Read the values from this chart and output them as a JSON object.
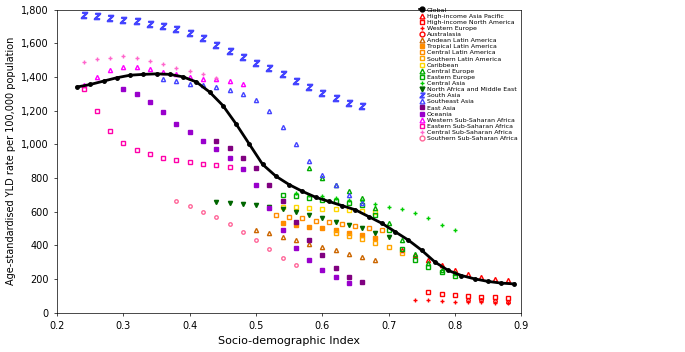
{
  "xlabel": "Socio-demographic Index",
  "ylabel": "Age-standardised YLD rate per 100,000 population",
  "xlim": [
    0.2,
    0.9
  ],
  "ylim": [
    0,
    1800
  ],
  "yticks": [
    0,
    200,
    400,
    600,
    800,
    1000,
    1200,
    1400,
    1600,
    1800
  ],
  "xticks": [
    0.2,
    0.3,
    0.4,
    0.5,
    0.6,
    0.7,
    0.8,
    0.9
  ],
  "regions": [
    {
      "name": "Global",
      "color": "#000000",
      "marker": "o",
      "markersize": 2.5,
      "linestyle": "-",
      "linewidth": 2.0,
      "fillstyle": "full",
      "x": [
        0.23,
        0.25,
        0.27,
        0.29,
        0.31,
        0.33,
        0.35,
        0.37,
        0.39,
        0.41,
        0.43,
        0.45,
        0.47,
        0.49,
        0.51,
        0.53,
        0.55,
        0.57,
        0.59,
        0.61,
        0.63,
        0.65,
        0.67,
        0.69,
        0.71,
        0.73,
        0.75,
        0.77,
        0.79,
        0.81,
        0.83,
        0.85,
        0.87,
        0.89
      ],
      "y": [
        1340,
        1355,
        1375,
        1395,
        1410,
        1415,
        1418,
        1415,
        1400,
        1370,
        1310,
        1230,
        1120,
        1000,
        880,
        810,
        760,
        720,
        685,
        660,
        635,
        610,
        570,
        530,
        480,
        430,
        370,
        300,
        250,
        220,
        200,
        185,
        175,
        170
      ]
    },
    {
      "name": "High-income Asia Pacific",
      "color": "#FF0000",
      "marker": "^",
      "markersize": 3,
      "linestyle": "none",
      "linewidth": 0,
      "fillstyle": "none",
      "x": [
        0.72,
        0.74,
        0.76,
        0.78,
        0.8,
        0.82,
        0.84,
        0.86,
        0.88
      ],
      "y": [
        370,
        340,
        310,
        280,
        255,
        230,
        210,
        200,
        195
      ]
    },
    {
      "name": "High-income North America",
      "color": "#FF0000",
      "marker": "s",
      "markersize": 2.5,
      "linestyle": "none",
      "linewidth": 0,
      "fillstyle": "none",
      "x": [
        0.76,
        0.78,
        0.8,
        0.82,
        0.84,
        0.86,
        0.88
      ],
      "y": [
        120,
        110,
        105,
        100,
        95,
        90,
        85
      ]
    },
    {
      "name": "Western Europe",
      "color": "#FF0000",
      "marker": "+",
      "markersize": 3.5,
      "linestyle": "none",
      "linewidth": 0,
      "fillstyle": "full",
      "x": [
        0.74,
        0.76,
        0.78,
        0.8,
        0.82,
        0.84,
        0.86,
        0.88
      ],
      "y": [
        75,
        72,
        68,
        65,
        62,
        60,
        57,
        55
      ]
    },
    {
      "name": "Australasia",
      "color": "#FF0000",
      "marker": "o",
      "markersize": 2.5,
      "linestyle": "none",
      "linewidth": 0,
      "fillstyle": "none",
      "x": [
        0.82,
        0.84,
        0.86,
        0.88
      ],
      "y": [
        75,
        72,
        68,
        65
      ]
    },
    {
      "name": "Andean Latin America",
      "color": "#CC6600",
      "marker": "^",
      "markersize": 3,
      "linestyle": "none",
      "linewidth": 0,
      "fillstyle": "none",
      "x": [
        0.5,
        0.52,
        0.54,
        0.56,
        0.58,
        0.6,
        0.62,
        0.64,
        0.66,
        0.68
      ],
      "y": [
        490,
        470,
        450,
        430,
        410,
        390,
        370,
        350,
        330,
        310
      ]
    },
    {
      "name": "Tropical Latin America",
      "color": "#FF8C00",
      "marker": "s",
      "markersize": 2.5,
      "linestyle": "none",
      "linewidth": 0,
      "fillstyle": "full",
      "x": [
        0.54,
        0.56,
        0.58,
        0.6,
        0.62,
        0.64,
        0.66,
        0.68
      ],
      "y": [
        530,
        520,
        510,
        500,
        490,
        475,
        460,
        445
      ]
    },
    {
      "name": "Central Latin America",
      "color": "#FF8C00",
      "marker": "s",
      "markersize": 2.5,
      "linestyle": "none",
      "linewidth": 0,
      "fillstyle": "none",
      "x": [
        0.53,
        0.55,
        0.57,
        0.59,
        0.61,
        0.63,
        0.65,
        0.67,
        0.69
      ],
      "y": [
        580,
        570,
        560,
        545,
        535,
        525,
        515,
        505,
        490
      ]
    },
    {
      "name": "Southern Latin America",
      "color": "#FFA500",
      "marker": "s",
      "markersize": 2.5,
      "linestyle": "none",
      "linewidth": 0,
      "fillstyle": "none",
      "x": [
        0.62,
        0.64,
        0.66,
        0.68,
        0.7,
        0.72
      ],
      "y": [
        470,
        455,
        435,
        415,
        390,
        355
      ]
    },
    {
      "name": "Caribbean",
      "color": "#FFD700",
      "marker": "s",
      "markersize": 2.5,
      "linestyle": "none",
      "linewidth": 0,
      "fillstyle": "none",
      "x": [
        0.54,
        0.56,
        0.58,
        0.6,
        0.62,
        0.64,
        0.66,
        0.68
      ],
      "y": [
        630,
        625,
        622,
        618,
        614,
        610,
        605,
        600
      ]
    },
    {
      "name": "Central Europe",
      "color": "#00AA00",
      "marker": "^",
      "markersize": 3,
      "linestyle": "none",
      "linewidth": 0,
      "fillstyle": "none",
      "x": [
        0.58,
        0.6,
        0.62,
        0.64,
        0.66,
        0.68,
        0.7,
        0.72,
        0.74,
        0.76,
        0.78,
        0.8
      ],
      "y": [
        860,
        800,
        760,
        720,
        680,
        620,
        530,
        430,
        350,
        295,
        255,
        235
      ]
    },
    {
      "name": "Eastern Europe",
      "color": "#00AA00",
      "marker": "s",
      "markersize": 2.5,
      "linestyle": "none",
      "linewidth": 0,
      "fillstyle": "none",
      "x": [
        0.54,
        0.56,
        0.58,
        0.6,
        0.62,
        0.64,
        0.66,
        0.68,
        0.7,
        0.72,
        0.74,
        0.76,
        0.78,
        0.8
      ],
      "y": [
        700,
        690,
        680,
        670,
        660,
        650,
        640,
        580,
        490,
        380,
        310,
        268,
        238,
        215
      ]
    },
    {
      "name": "Central Asia",
      "color": "#00CC00",
      "marker": "+",
      "markersize": 3.5,
      "linestyle": "none",
      "linewidth": 0,
      "fillstyle": "full",
      "x": [
        0.56,
        0.58,
        0.6,
        0.62,
        0.64,
        0.66,
        0.68,
        0.7,
        0.72,
        0.74,
        0.76,
        0.78,
        0.8
      ],
      "y": [
        710,
        700,
        690,
        680,
        670,
        660,
        645,
        630,
        615,
        590,
        560,
        520,
        490
      ]
    },
    {
      "name": "North Africa and Middle East",
      "color": "#006600",
      "marker": "v",
      "markersize": 3,
      "linestyle": "none",
      "linewidth": 0,
      "fillstyle": "full",
      "x": [
        0.44,
        0.46,
        0.48,
        0.5,
        0.52,
        0.54,
        0.56,
        0.58,
        0.6,
        0.62,
        0.64,
        0.66,
        0.68,
        0.7
      ],
      "y": [
        655,
        650,
        645,
        640,
        630,
        615,
        600,
        580,
        560,
        540,
        520,
        500,
        475,
        450
      ]
    },
    {
      "name": "South Asia",
      "color": "#4444FF",
      "marker": "z",
      "markersize": 4.5,
      "linestyle": "none",
      "linewidth": 0,
      "fillstyle": "full",
      "x": [
        0.24,
        0.26,
        0.28,
        0.3,
        0.32,
        0.34,
        0.36,
        0.38,
        0.4,
        0.42,
        0.44,
        0.46,
        0.48,
        0.5,
        0.52,
        0.54,
        0.56,
        0.58,
        0.6,
        0.62,
        0.64,
        0.66
      ],
      "y": [
        1770,
        1760,
        1750,
        1740,
        1730,
        1715,
        1700,
        1685,
        1660,
        1630,
        1590,
        1555,
        1520,
        1485,
        1450,
        1415,
        1375,
        1340,
        1305,
        1275,
        1245,
        1225
      ]
    },
    {
      "name": "Southeast Asia",
      "color": "#4444FF",
      "marker": "^",
      "markersize": 3,
      "linestyle": "none",
      "linewidth": 0,
      "fillstyle": "none",
      "x": [
        0.36,
        0.38,
        0.4,
        0.42,
        0.44,
        0.46,
        0.48,
        0.5,
        0.52,
        0.54,
        0.56,
        0.58,
        0.6,
        0.62,
        0.64,
        0.66
      ],
      "y": [
        1390,
        1375,
        1360,
        1350,
        1340,
        1325,
        1300,
        1260,
        1195,
        1100,
        1000,
        900,
        820,
        760,
        700,
        650
      ]
    },
    {
      "name": "East Asia",
      "color": "#800080",
      "marker": "s",
      "markersize": 2.5,
      "linestyle": "none",
      "linewidth": 0,
      "fillstyle": "full",
      "x": [
        0.44,
        0.46,
        0.48,
        0.5,
        0.52,
        0.54,
        0.56,
        0.58,
        0.6,
        0.62,
        0.64,
        0.66
      ],
      "y": [
        1020,
        980,
        920,
        860,
        760,
        660,
        540,
        430,
        340,
        265,
        210,
        180
      ]
    },
    {
      "name": "Oceania",
      "color": "#9900CC",
      "marker": "s",
      "markersize": 2.5,
      "linestyle": "none",
      "linewidth": 0,
      "fillstyle": "full",
      "x": [
        0.3,
        0.32,
        0.34,
        0.36,
        0.38,
        0.4,
        0.42,
        0.44,
        0.46,
        0.48,
        0.5,
        0.52,
        0.54,
        0.56,
        0.58,
        0.6,
        0.62,
        0.64
      ],
      "y": [
        1330,
        1300,
        1250,
        1190,
        1120,
        1070,
        1020,
        970,
        920,
        855,
        760,
        620,
        490,
        385,
        310,
        255,
        210,
        175
      ]
    },
    {
      "name": "Western Sub-Saharan Africa",
      "color": "#FF00FF",
      "marker": "^",
      "markersize": 3,
      "linestyle": "none",
      "linewidth": 0,
      "fillstyle": "none",
      "x": [
        0.24,
        0.26,
        0.28,
        0.3,
        0.32,
        0.34,
        0.36,
        0.38,
        0.4,
        0.42,
        0.44,
        0.46,
        0.48
      ],
      "y": [
        1350,
        1400,
        1440,
        1460,
        1460,
        1445,
        1430,
        1415,
        1400,
        1390,
        1385,
        1375,
        1355
      ]
    },
    {
      "name": "Eastern Sub-Saharan Africa",
      "color": "#FF00AA",
      "marker": "s",
      "markersize": 2.5,
      "linestyle": "none",
      "linewidth": 0,
      "fillstyle": "none",
      "x": [
        0.24,
        0.26,
        0.28,
        0.3,
        0.32,
        0.34,
        0.36,
        0.38,
        0.4,
        0.42,
        0.44,
        0.46
      ],
      "y": [
        1330,
        1200,
        1080,
        1010,
        965,
        940,
        920,
        905,
        895,
        885,
        875,
        865
      ]
    },
    {
      "name": "Central Sub-Saharan Africa",
      "color": "#FF66CC",
      "marker": "+",
      "markersize": 3.5,
      "linestyle": "none",
      "linewidth": 0,
      "fillstyle": "full",
      "x": [
        0.24,
        0.26,
        0.28,
        0.3,
        0.32,
        0.34,
        0.36,
        0.38,
        0.4,
        0.42,
        0.44
      ],
      "y": [
        1490,
        1505,
        1515,
        1525,
        1510,
        1495,
        1475,
        1455,
        1435,
        1415,
        1395
      ]
    },
    {
      "name": "Southern Sub-Saharan Africa",
      "color": "#FF6699",
      "marker": "o",
      "markersize": 2.5,
      "linestyle": "none",
      "linewidth": 0,
      "fillstyle": "none",
      "x": [
        0.38,
        0.4,
        0.42,
        0.44,
        0.46,
        0.48,
        0.5,
        0.52,
        0.54,
        0.56
      ],
      "y": [
        665,
        635,
        600,
        565,
        525,
        480,
        430,
        380,
        325,
        285
      ]
    }
  ],
  "legend": [
    {
      "name": "Global",
      "color": "#000000",
      "marker": "o",
      "fillstyle": "full",
      "ls": "-"
    },
    {
      "name": "High-income Asia Pacific",
      "color": "#FF0000",
      "marker": "^",
      "fillstyle": "none",
      "ls": "none"
    },
    {
      "name": "High-income North America",
      "color": "#FF0000",
      "marker": "s",
      "fillstyle": "none",
      "ls": "none"
    },
    {
      "name": "Western Europe",
      "color": "#FF0000",
      "marker": "+",
      "fillstyle": "full",
      "ls": "none"
    },
    {
      "name": "Australasia",
      "color": "#FF0000",
      "marker": "o",
      "fillstyle": "none",
      "ls": "none"
    },
    {
      "name": "Andean Latin America",
      "color": "#CC6600",
      "marker": "^",
      "fillstyle": "none",
      "ls": "none"
    },
    {
      "name": "Tropical Latin America",
      "color": "#FF8C00",
      "marker": "s",
      "fillstyle": "full",
      "ls": "none"
    },
    {
      "name": "Central Latin America",
      "color": "#FF8C00",
      "marker": "s",
      "fillstyle": "none",
      "ls": "none"
    },
    {
      "name": "Southern Latin America",
      "color": "#FFA500",
      "marker": "s",
      "fillstyle": "none",
      "ls": "none"
    },
    {
      "name": "Caribbean",
      "color": "#FFD700",
      "marker": "s",
      "fillstyle": "none",
      "ls": "none"
    },
    {
      "name": "Central Europe",
      "color": "#00AA00",
      "marker": "^",
      "fillstyle": "none",
      "ls": "none"
    },
    {
      "name": "Eastern Europe",
      "color": "#00AA00",
      "marker": "s",
      "fillstyle": "none",
      "ls": "none"
    },
    {
      "name": "Central Asia",
      "color": "#00CC00",
      "marker": "+",
      "fillstyle": "full",
      "ls": "none"
    },
    {
      "name": "North Africa and Middle East",
      "color": "#006600",
      "marker": "v",
      "fillstyle": "full",
      "ls": "none"
    },
    {
      "name": "South Asia",
      "color": "#4444FF",
      "marker": "z",
      "fillstyle": "full",
      "ls": "none"
    },
    {
      "name": "Southeast Asia",
      "color": "#4444FF",
      "marker": "^",
      "fillstyle": "none",
      "ls": "none"
    },
    {
      "name": "East Asia",
      "color": "#800080",
      "marker": "s",
      "fillstyle": "full",
      "ls": "none"
    },
    {
      "name": "Oceania",
      "color": "#9900CC",
      "marker": "s",
      "fillstyle": "full",
      "ls": "none"
    },
    {
      "name": "Western Sub-Saharan Africa",
      "color": "#FF00FF",
      "marker": "^",
      "fillstyle": "none",
      "ls": "none"
    },
    {
      "name": "Eastern Sub-Saharan Africa",
      "color": "#FF00AA",
      "marker": "s",
      "fillstyle": "none",
      "ls": "none"
    },
    {
      "name": "Central Sub-Saharan Africa",
      "color": "#FF66CC",
      "marker": "+",
      "fillstyle": "full",
      "ls": "none"
    },
    {
      "name": "Southern Sub-Saharan Africa",
      "color": "#FF6699",
      "marker": "o",
      "fillstyle": "none",
      "ls": "none"
    }
  ]
}
